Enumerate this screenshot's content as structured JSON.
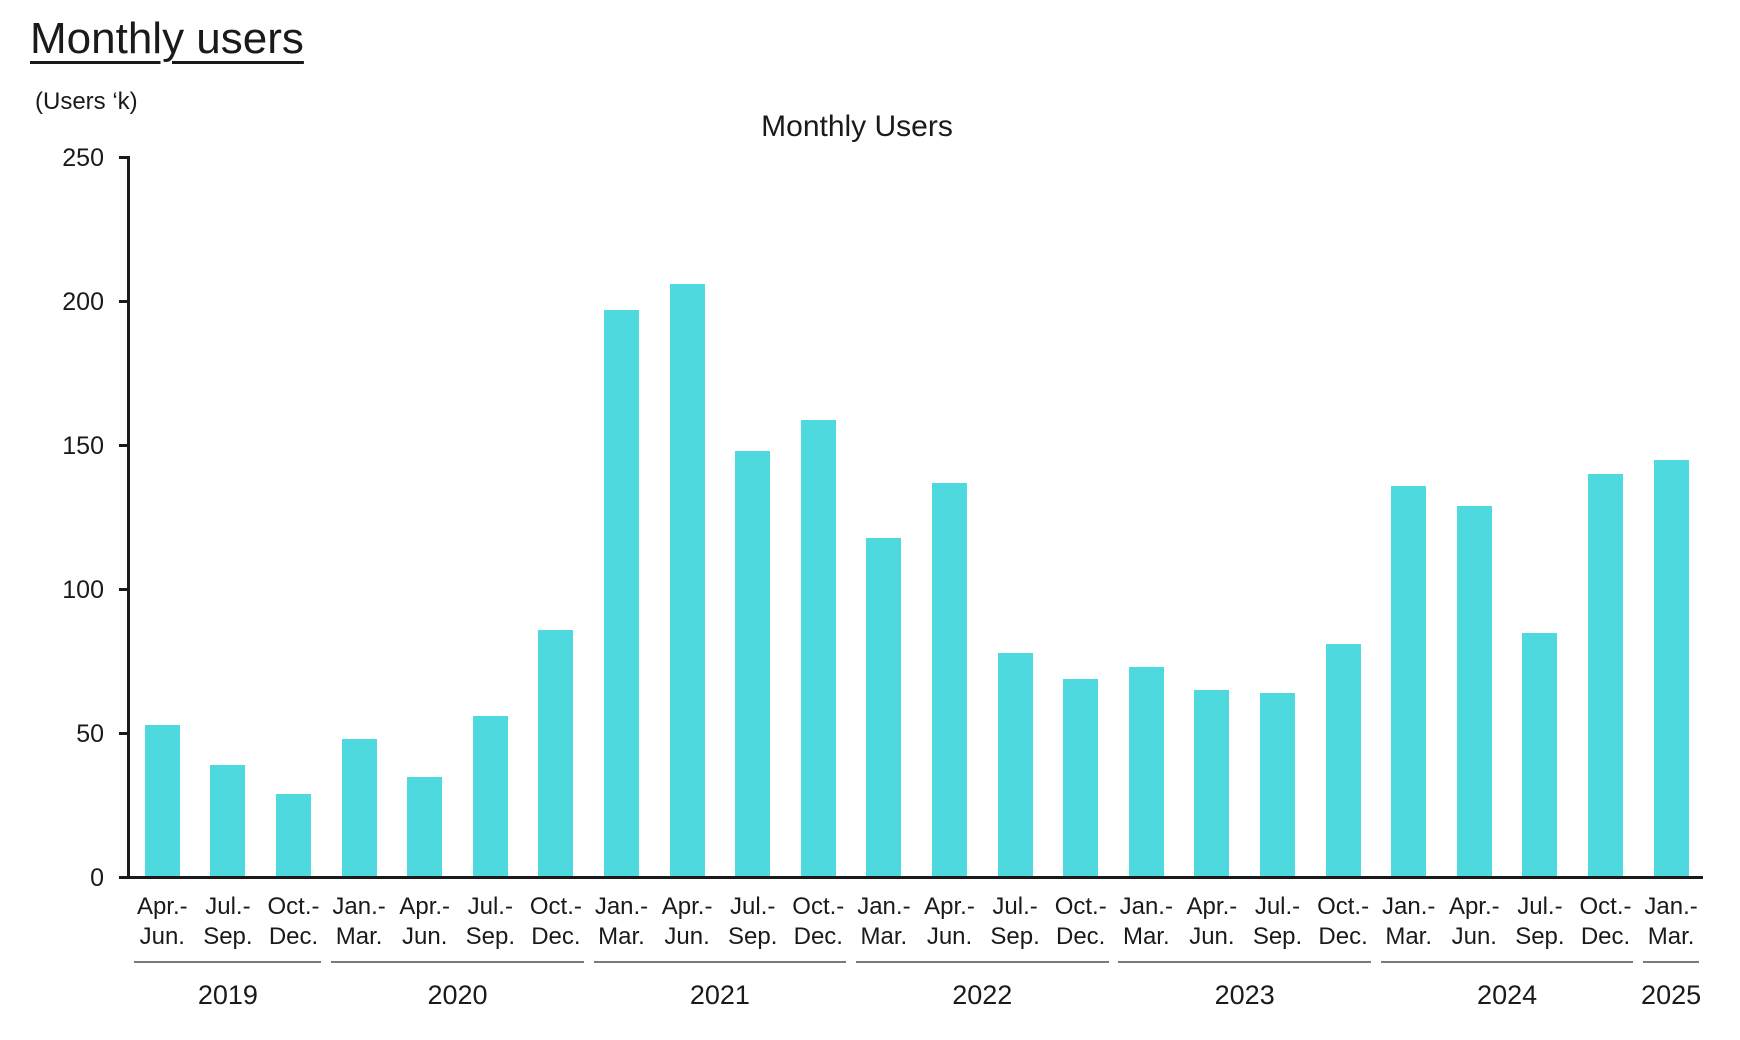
{
  "page": {
    "title": "Monthly users"
  },
  "chart_data": {
    "type": "bar",
    "title": "Monthly Users",
    "unit_label": "(Users ‘k)",
    "ylabel": "Users ‘k",
    "xlabel": "",
    "ylim": [
      0,
      250
    ],
    "yticks": [
      "0",
      "50",
      "100",
      "150",
      "200",
      "250"
    ],
    "ytick_values": [
      0,
      50,
      100,
      150,
      200,
      250
    ],
    "grid": "off",
    "legend": "none",
    "bar_color": "#4ED9DF",
    "axis_color": "#1a1a1a",
    "year_underline_color": "#7a7a7a",
    "categories": [
      {
        "quarter": "Apr.-\nJun.",
        "year": "2019"
      },
      {
        "quarter": "Jul.-\nSep.",
        "year": "2019"
      },
      {
        "quarter": "Oct.-\nDec.",
        "year": "2019"
      },
      {
        "quarter": "Jan.-\nMar.",
        "year": "2020"
      },
      {
        "quarter": "Apr.-\nJun.",
        "year": "2020"
      },
      {
        "quarter": "Jul.-\nSep.",
        "year": "2020"
      },
      {
        "quarter": "Oct.-\nDec.",
        "year": "2020"
      },
      {
        "quarter": "Jan.-\nMar.",
        "year": "2021"
      },
      {
        "quarter": "Apr.-\nJun.",
        "year": "2021"
      },
      {
        "quarter": "Jul.-\nSep.",
        "year": "2021"
      },
      {
        "quarter": "Oct.-\nDec.",
        "year": "2021"
      },
      {
        "quarter": "Jan.-\nMar.",
        "year": "2022"
      },
      {
        "quarter": "Apr.-\nJun.",
        "year": "2022"
      },
      {
        "quarter": "Jul.-\nSep.",
        "year": "2022"
      },
      {
        "quarter": "Oct.-\nDec.",
        "year": "2022"
      },
      {
        "quarter": "Jan.-\nMar.",
        "year": "2023"
      },
      {
        "quarter": "Apr.-\nJun.",
        "year": "2023"
      },
      {
        "quarter": "Jul.-\nSep.",
        "year": "2023"
      },
      {
        "quarter": "Oct.-\nDec.",
        "year": "2023"
      },
      {
        "quarter": "Jan.-\nMar.",
        "year": "2024"
      },
      {
        "quarter": "Apr.-\nJun.",
        "year": "2024"
      },
      {
        "quarter": "Jul.-\nSep.",
        "year": "2024"
      },
      {
        "quarter": "Oct.-\nDec.",
        "year": "2024"
      },
      {
        "quarter": "Jan.-\nMar.",
        "year": "2025"
      }
    ],
    "values": [
      53,
      39,
      29,
      48,
      35,
      56,
      86,
      197,
      206,
      148,
      159,
      118,
      137,
      78,
      69,
      73,
      65,
      64,
      81,
      136,
      129,
      85,
      140,
      145
    ],
    "year_groups": [
      {
        "label": "2019",
        "count": 3
      },
      {
        "label": "2020",
        "count": 4
      },
      {
        "label": "2021",
        "count": 4
      },
      {
        "label": "2022",
        "count": 4
      },
      {
        "label": "2023",
        "count": 4
      },
      {
        "label": "2024",
        "count": 4
      },
      {
        "label": "2025",
        "count": 1
      }
    ]
  }
}
